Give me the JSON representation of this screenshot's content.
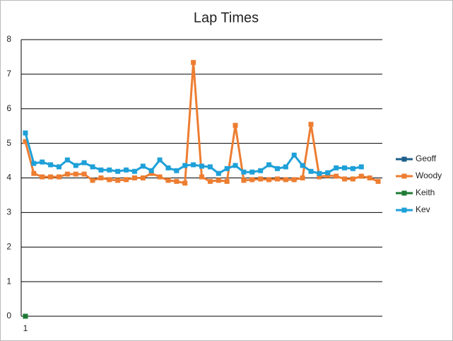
{
  "chart_data": {
    "type": "line",
    "title": "Lap Times",
    "categories": [
      "1",
      null,
      null,
      null,
      null,
      null,
      null,
      null,
      null,
      null,
      null,
      null,
      null,
      null,
      null,
      null,
      null,
      null,
      null,
      null,
      null,
      null,
      null,
      null,
      null,
      null,
      null,
      null,
      null,
      null,
      null,
      null,
      null,
      null,
      null,
      null,
      null,
      null,
      null,
      null,
      null,
      null,
      null
    ],
    "series": [
      {
        "name": "Geoff",
        "color": "#1f5f8b",
        "values": [
          0,
          null,
          null,
          null,
          null,
          null,
          null,
          null,
          null,
          null,
          null,
          null,
          null,
          null,
          null,
          null,
          null,
          null,
          null,
          null,
          null,
          null,
          null,
          null,
          null,
          null,
          null,
          null,
          null,
          null,
          null,
          null,
          null,
          null,
          null,
          null,
          null,
          null,
          null,
          null,
          null,
          null,
          null
        ]
      },
      {
        "name": "Woody",
        "color": "#ed7d31",
        "values": [
          5.05,
          4.13,
          4.03,
          4.03,
          4.03,
          4.11,
          4.11,
          4.11,
          3.93,
          4.0,
          3.95,
          3.93,
          3.95,
          4.0,
          4.0,
          4.13,
          4.03,
          3.93,
          3.9,
          3.85,
          7.34,
          4.03,
          3.9,
          3.93,
          3.9,
          5.52,
          3.93,
          3.95,
          3.97,
          3.95,
          3.97,
          3.95,
          3.95,
          4.0,
          5.55,
          4.03,
          4.07,
          4.05,
          3.97,
          3.97,
          4.05,
          4.0,
          3.9
        ]
      },
      {
        "name": "Keith",
        "color": "#1e7b34",
        "values": [
          0,
          null,
          null,
          null,
          null,
          null,
          null,
          null,
          null,
          null,
          null,
          null,
          null,
          null,
          null,
          null,
          null,
          null,
          null,
          null,
          null,
          null,
          null,
          null,
          null,
          null,
          null,
          null,
          null,
          null,
          null,
          null,
          null,
          null,
          null,
          null,
          null,
          null,
          null,
          null,
          null,
          null,
          null
        ]
      },
      {
        "name": "Kev",
        "color": "#1ea0d8",
        "values": [
          5.3,
          4.42,
          4.46,
          4.38,
          4.32,
          4.52,
          4.36,
          4.44,
          4.32,
          4.23,
          4.23,
          4.19,
          4.23,
          4.19,
          4.34,
          4.21,
          4.52,
          4.29,
          4.21,
          4.36,
          4.38,
          4.34,
          4.32,
          4.13,
          4.27,
          4.36,
          4.17,
          4.17,
          4.21,
          4.38,
          4.27,
          4.32,
          4.66,
          4.36,
          4.19,
          4.13,
          4.15,
          4.29,
          4.29,
          4.27,
          4.32,
          null,
          null
        ]
      }
    ],
    "ylim": [
      0,
      8
    ],
    "yticks": [
      0,
      1,
      2,
      3,
      4,
      5,
      6,
      7,
      8
    ],
    "grid": true,
    "legend": "right"
  }
}
